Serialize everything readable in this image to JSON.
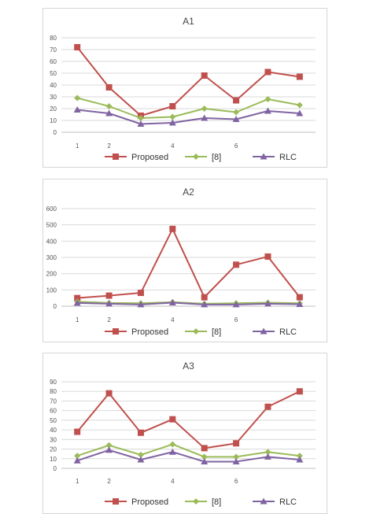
{
  "colors": {
    "proposed": "#c0504d",
    "ref8": "#9bbb59",
    "rlc": "#8064a2",
    "grid": "#d9d9d9",
    "axis": "#bfbfbf"
  },
  "legend": {
    "proposed": "Proposed",
    "ref8": "[8]",
    "rlc": "RLC"
  },
  "chart_data": [
    {
      "type": "line",
      "title": "A1",
      "x": [
        1,
        2,
        3,
        4,
        5,
        6,
        7,
        8
      ],
      "x_tick_labels": [
        "1",
        "2",
        "",
        "4",
        "",
        "6",
        "",
        ""
      ],
      "ylim": [
        0,
        80
      ],
      "y_ticks": [
        0,
        10,
        20,
        30,
        40,
        50,
        60,
        70,
        80
      ],
      "grid": true,
      "legend_position": "bottom",
      "series": [
        {
          "name": "Proposed",
          "marker": "square",
          "values": [
            72,
            38,
            14,
            22,
            48,
            27,
            51,
            47
          ]
        },
        {
          "name": "[8]",
          "marker": "diamond",
          "values": [
            29,
            22,
            12,
            13,
            20,
            17,
            28,
            23
          ]
        },
        {
          "name": "RLC",
          "marker": "triangle",
          "values": [
            19,
            16,
            7,
            8,
            12,
            11,
            18,
            16
          ]
        }
      ]
    },
    {
      "type": "line",
      "title": "A2",
      "x": [
        1,
        2,
        3,
        4,
        5,
        6,
        7,
        8
      ],
      "x_tick_labels": [
        "1",
        "2",
        "",
        "4",
        "",
        "6",
        "",
        ""
      ],
      "ylim": [
        0,
        600
      ],
      "y_ticks": [
        0,
        100,
        200,
        300,
        400,
        500,
        600
      ],
      "grid": true,
      "legend_position": "bottom",
      "series": [
        {
          "name": "Proposed",
          "marker": "square",
          "values": [
            50,
            65,
            82,
            475,
            55,
            255,
            305,
            55
          ]
        },
        {
          "name": "[8]",
          "marker": "diamond",
          "values": [
            28,
            20,
            18,
            25,
            15,
            18,
            22,
            18
          ]
        },
        {
          "name": "RLC",
          "marker": "triangle",
          "values": [
            20,
            15,
            10,
            22,
            10,
            10,
            15,
            12
          ]
        }
      ]
    },
    {
      "type": "line",
      "title": "A3",
      "x": [
        1,
        2,
        3,
        4,
        5,
        6,
        7,
        8
      ],
      "x_tick_labels": [
        "1",
        "2",
        "",
        "4",
        "",
        "6",
        "",
        ""
      ],
      "ylim": [
        0,
        90
      ],
      "y_ticks": [
        0,
        10,
        20,
        30,
        40,
        50,
        60,
        70,
        80,
        90
      ],
      "grid": true,
      "legend_position": "bottom",
      "series": [
        {
          "name": "Proposed",
          "marker": "square",
          "values": [
            38,
            78,
            37,
            51,
            21,
            26,
            64,
            80
          ]
        },
        {
          "name": "[8]",
          "marker": "diamond",
          "values": [
            13,
            24,
            14,
            25,
            12,
            12,
            17,
            13
          ]
        },
        {
          "name": "RLC",
          "marker": "triangle",
          "values": [
            8,
            19,
            9,
            17,
            7,
            7,
            12,
            9
          ]
        }
      ]
    }
  ]
}
